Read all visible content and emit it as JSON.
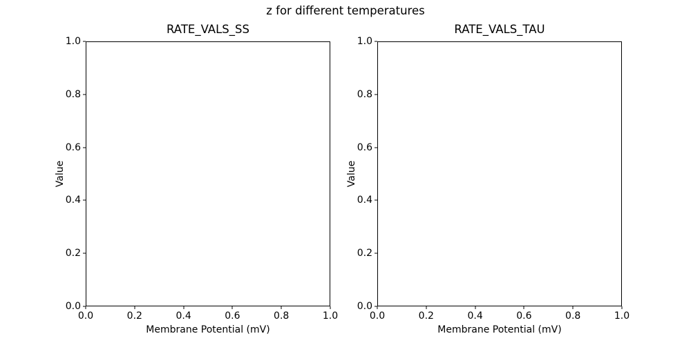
{
  "figure": {
    "suptitle": "z for different temperatures",
    "background_color": "#ffffff",
    "text_color": "#000000",
    "spine_color": "#000000"
  },
  "chart_data": [
    {
      "type": "line",
      "title": "RATE_VALS_SS",
      "xlabel": "Membrane Potential (mV)",
      "ylabel": "Value",
      "xlim": [
        0.0,
        1.0
      ],
      "ylim": [
        0.0,
        1.0
      ],
      "xticks": [
        "0.0",
        "0.2",
        "0.4",
        "0.6",
        "0.8",
        "1.0"
      ],
      "yticks": [
        "0.0",
        "0.2",
        "0.4",
        "0.6",
        "0.8",
        "1.0"
      ],
      "grid": false,
      "legend": false,
      "tick_direction": "out",
      "series": []
    },
    {
      "type": "line",
      "title": "RATE_VALS_TAU",
      "xlabel": "Membrane Potential (mV)",
      "ylabel": "Value",
      "xlim": [
        0.0,
        1.0
      ],
      "ylim": [
        0.0,
        1.0
      ],
      "xticks": [
        "0.0",
        "0.2",
        "0.4",
        "0.6",
        "0.8",
        "1.0"
      ],
      "yticks": [
        "0.0",
        "0.2",
        "0.4",
        "0.6",
        "0.8",
        "1.0"
      ],
      "grid": false,
      "legend": false,
      "tick_direction": "out",
      "series": []
    }
  ]
}
